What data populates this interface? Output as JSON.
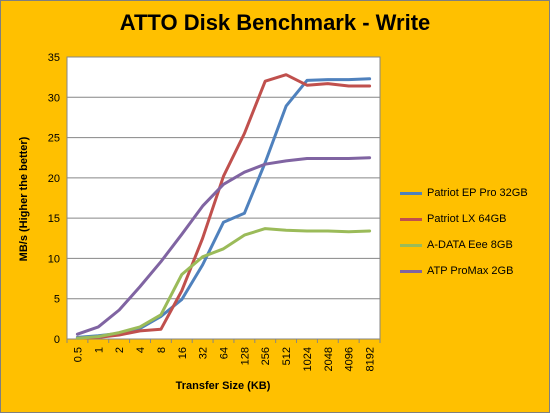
{
  "chart_data": {
    "type": "line",
    "title": "ATTO Disk Benchmark - Write",
    "xlabel": "Transfer Size (KB)",
    "ylabel": "MB/s (Higher the better)",
    "ylim": [
      0,
      35
    ],
    "yticks": [
      "0",
      "5",
      "10",
      "15",
      "20",
      "25",
      "30",
      "35"
    ],
    "categories": [
      "0.5",
      "1",
      "2",
      "4",
      "8",
      "16",
      "32",
      "64",
      "128",
      "256",
      "512",
      "1024",
      "2048",
      "4096",
      "8192"
    ],
    "grid": "horizontal",
    "legend_position": "right",
    "series": [
      {
        "name": "Patriot EP Pro 32GB",
        "color": "#4f81bd",
        "values": [
          0.2,
          0.4,
          0.7,
          1.3,
          2.8,
          4.9,
          9.2,
          14.5,
          15.6,
          21.9,
          28.9,
          32.1,
          32.2,
          32.2,
          32.3
        ]
      },
      {
        "name": "Patriot LX 64GB",
        "color": "#c0504d",
        "values": [
          0.1,
          0.2,
          0.5,
          1.0,
          1.2,
          6.0,
          12.5,
          20.2,
          25.5,
          32.0,
          32.8,
          31.5,
          31.7,
          31.4,
          31.4
        ]
      },
      {
        "name": "A-DATA Eee 8GB",
        "color": "#9bbb59",
        "values": [
          0.1,
          0.3,
          0.8,
          1.5,
          3.0,
          8.0,
          10.2,
          11.2,
          12.9,
          13.7,
          13.5,
          13.4,
          13.4,
          13.3,
          13.4
        ]
      },
      {
        "name": "ATP ProMax 2GB",
        "color": "#8064a2",
        "values": [
          0.6,
          1.5,
          3.6,
          6.5,
          9.6,
          13.0,
          16.5,
          19.2,
          20.7,
          21.7,
          22.1,
          22.4,
          22.4,
          22.4,
          22.5
        ]
      }
    ]
  }
}
